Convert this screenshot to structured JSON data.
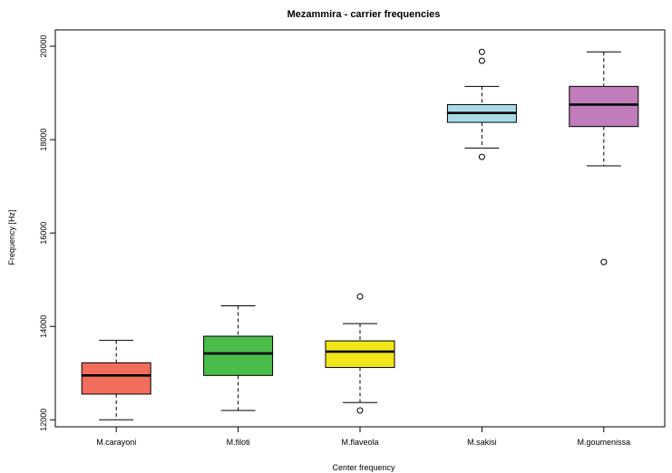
{
  "chart_data": {
    "type": "boxplot",
    "title": "Mezammira - carrier frequencies",
    "xlabel": "Center frequency",
    "ylabel": "Frequency [Hz]",
    "ylim": [
      11850,
      20350
    ],
    "yticks": [
      "12000",
      "14000",
      "16000",
      "18000",
      "20000"
    ],
    "grid": false,
    "categories": [
      "M.carayoni",
      "M.filoti",
      "M.flaveola",
      "M.sakisi",
      "M.goumenissa"
    ],
    "boxes": [
      {
        "category": "M.carayoni",
        "whisker_low": 12000,
        "q1": 12550,
        "median": 12950,
        "q3": 13220,
        "whisker_high": 13700,
        "outliers": [],
        "color": "#f26d5b"
      },
      {
        "category": "M.filoti",
        "whisker_low": 12200,
        "q1": 12950,
        "median": 13420,
        "q3": 13790,
        "whisker_high": 14440,
        "outliers": [],
        "color": "#4bbd4b"
      },
      {
        "category": "M.flaveola",
        "whisker_low": 12370,
        "q1": 13120,
        "median": 13460,
        "q3": 13690,
        "whisker_high": 14060,
        "outliers": [
          14640,
          12200
        ],
        "color": "#f0e61a"
      },
      {
        "category": "M.sakisi",
        "whisker_low": 17820,
        "q1": 18370,
        "median": 18570,
        "q3": 18750,
        "whisker_high": 19140,
        "outliers": [
          19880,
          19690,
          17630
        ],
        "color": "#a8dbe6"
      },
      {
        "category": "M.goumenissa",
        "whisker_low": 17440,
        "q1": 18280,
        "median": 18750,
        "q3": 19140,
        "whisker_high": 19880,
        "outliers": [
          15380
        ],
        "color": "#c07cbb"
      }
    ]
  }
}
